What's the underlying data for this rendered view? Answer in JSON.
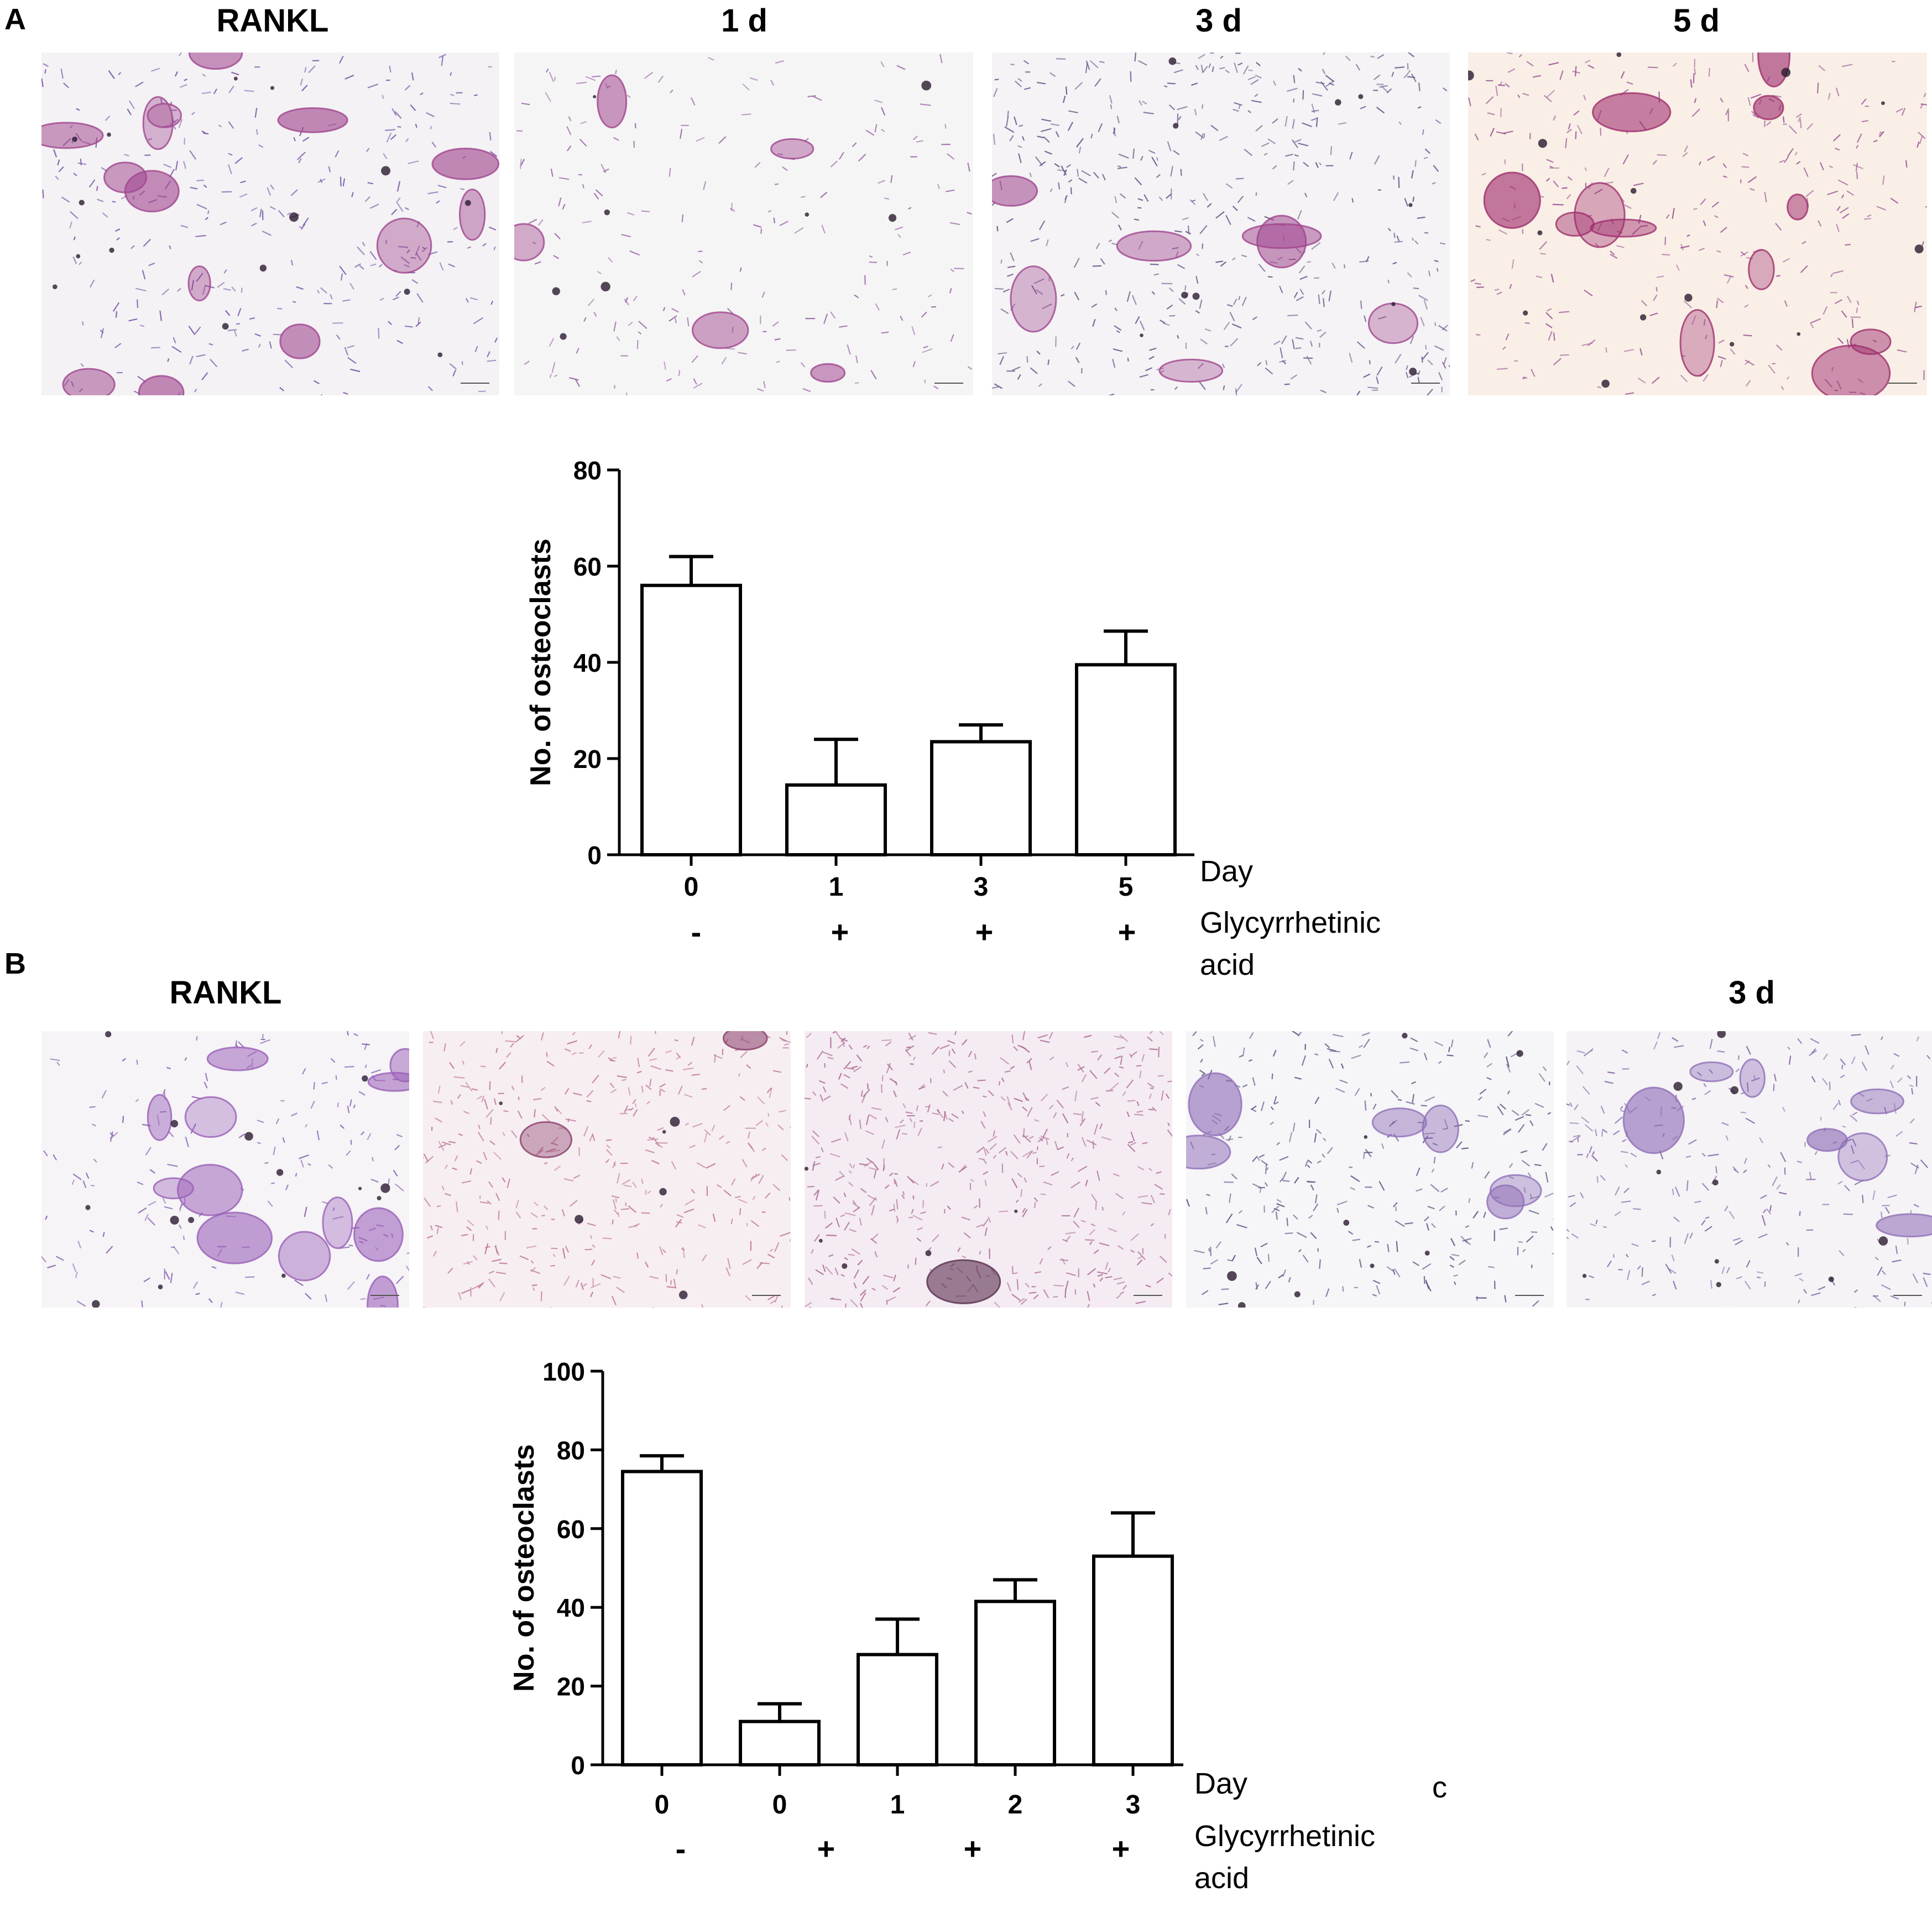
{
  "panels": [
    {
      "label": "A",
      "image_titles": [
        "RANKL",
        "1 d",
        "3 d",
        "5 d"
      ],
      "images": [
        {
          "name": "micrograph-rankl",
          "tint": "#f4f2f5",
          "cell": "#7e5aa8",
          "osteo": "#a0468e",
          "density": 0.55,
          "osteoclasts": 14
        },
        {
          "name": "micrograph-1d",
          "tint": "#f6f5f6",
          "cell": "#9a6aa6",
          "osteo": "#a0468e",
          "density": 0.35,
          "osteoclasts": 5
        },
        {
          "name": "micrograph-3d",
          "tint": "#f5f3f5",
          "cell": "#6f5a8e",
          "osteo": "#a0468e",
          "density": 0.8,
          "osteoclasts": 7
        },
        {
          "name": "micrograph-5d",
          "tint": "#f9efe6",
          "cell": "#9e5a9a",
          "osteo": "#a0306e",
          "density": 0.55,
          "osteoclasts": 12
        }
      ],
      "row_labels": {
        "day": "Day",
        "treatment_line1": "Glycyrrhetinic",
        "treatment_line2": "acid"
      }
    },
    {
      "label": "B",
      "image_titles": [
        "RANKL",
        "3 d"
      ],
      "images": [
        {
          "name": "micrograph-rankl",
          "tint": "#f6f4f7",
          "cell": "#8a60b0",
          "osteo": "#9a60b8",
          "density": 0.45,
          "osteoclasts": 12
        },
        {
          "name": "micrograph-0d",
          "tint": "#f7eef2",
          "cell": "#c07a9c",
          "osteo": "#8a3f6a",
          "density": 1.0,
          "osteoclasts": 2
        },
        {
          "name": "micrograph-1d",
          "tint": "#f4ecf2",
          "cell": "#b0709a",
          "osteo": "#5a3050",
          "density": 1.3,
          "osteoclasts": 1
        },
        {
          "name": "micrograph-2d",
          "tint": "#f6f5f8",
          "cell": "#5e5a86",
          "osteo": "#9070b8",
          "density": 0.8,
          "osteoclasts": 6
        },
        {
          "name": "micrograph-3d",
          "tint": "#f5f3f6",
          "cell": "#8a6aa8",
          "osteo": "#9070b8",
          "density": 0.7,
          "osteoclasts": 7
        }
      ],
      "row_labels": {
        "day": "Day",
        "stray_char": "c",
        "treatment_line1": "Glycyrrhetinic",
        "treatment_line2": "acid"
      }
    }
  ],
  "chart_data": [
    {
      "type": "bar",
      "panel": "A",
      "categories": [
        "0",
        "1",
        "3",
        "5"
      ],
      "treatment": [
        "-",
        "+",
        "+",
        "+"
      ],
      "values": [
        56,
        14.5,
        23.5,
        39.5
      ],
      "errors": [
        6,
        9.5,
        3.5,
        7
      ],
      "ylabel": "No. of osteoclasts",
      "yticks": [
        0,
        20,
        40,
        60,
        80
      ],
      "ylim": [
        0,
        80
      ],
      "bar_color": "#ffffff",
      "stroke_color": "#000000"
    },
    {
      "type": "bar",
      "panel": "B",
      "categories": [
        "0",
        "0",
        "1",
        "2",
        "3"
      ],
      "treatment": [
        "-",
        "+",
        "",
        "+",
        "+"
      ],
      "values": [
        74.5,
        11,
        28,
        41.5,
        53
      ],
      "errors": [
        4,
        4.5,
        9,
        5.5,
        11
      ],
      "ylabel": "No. of osteoclasts",
      "yticks": [
        0,
        20,
        40,
        60,
        80,
        100
      ],
      "ylim": [
        0,
        100
      ],
      "bar_color": "#ffffff",
      "stroke_color": "#000000"
    }
  ]
}
